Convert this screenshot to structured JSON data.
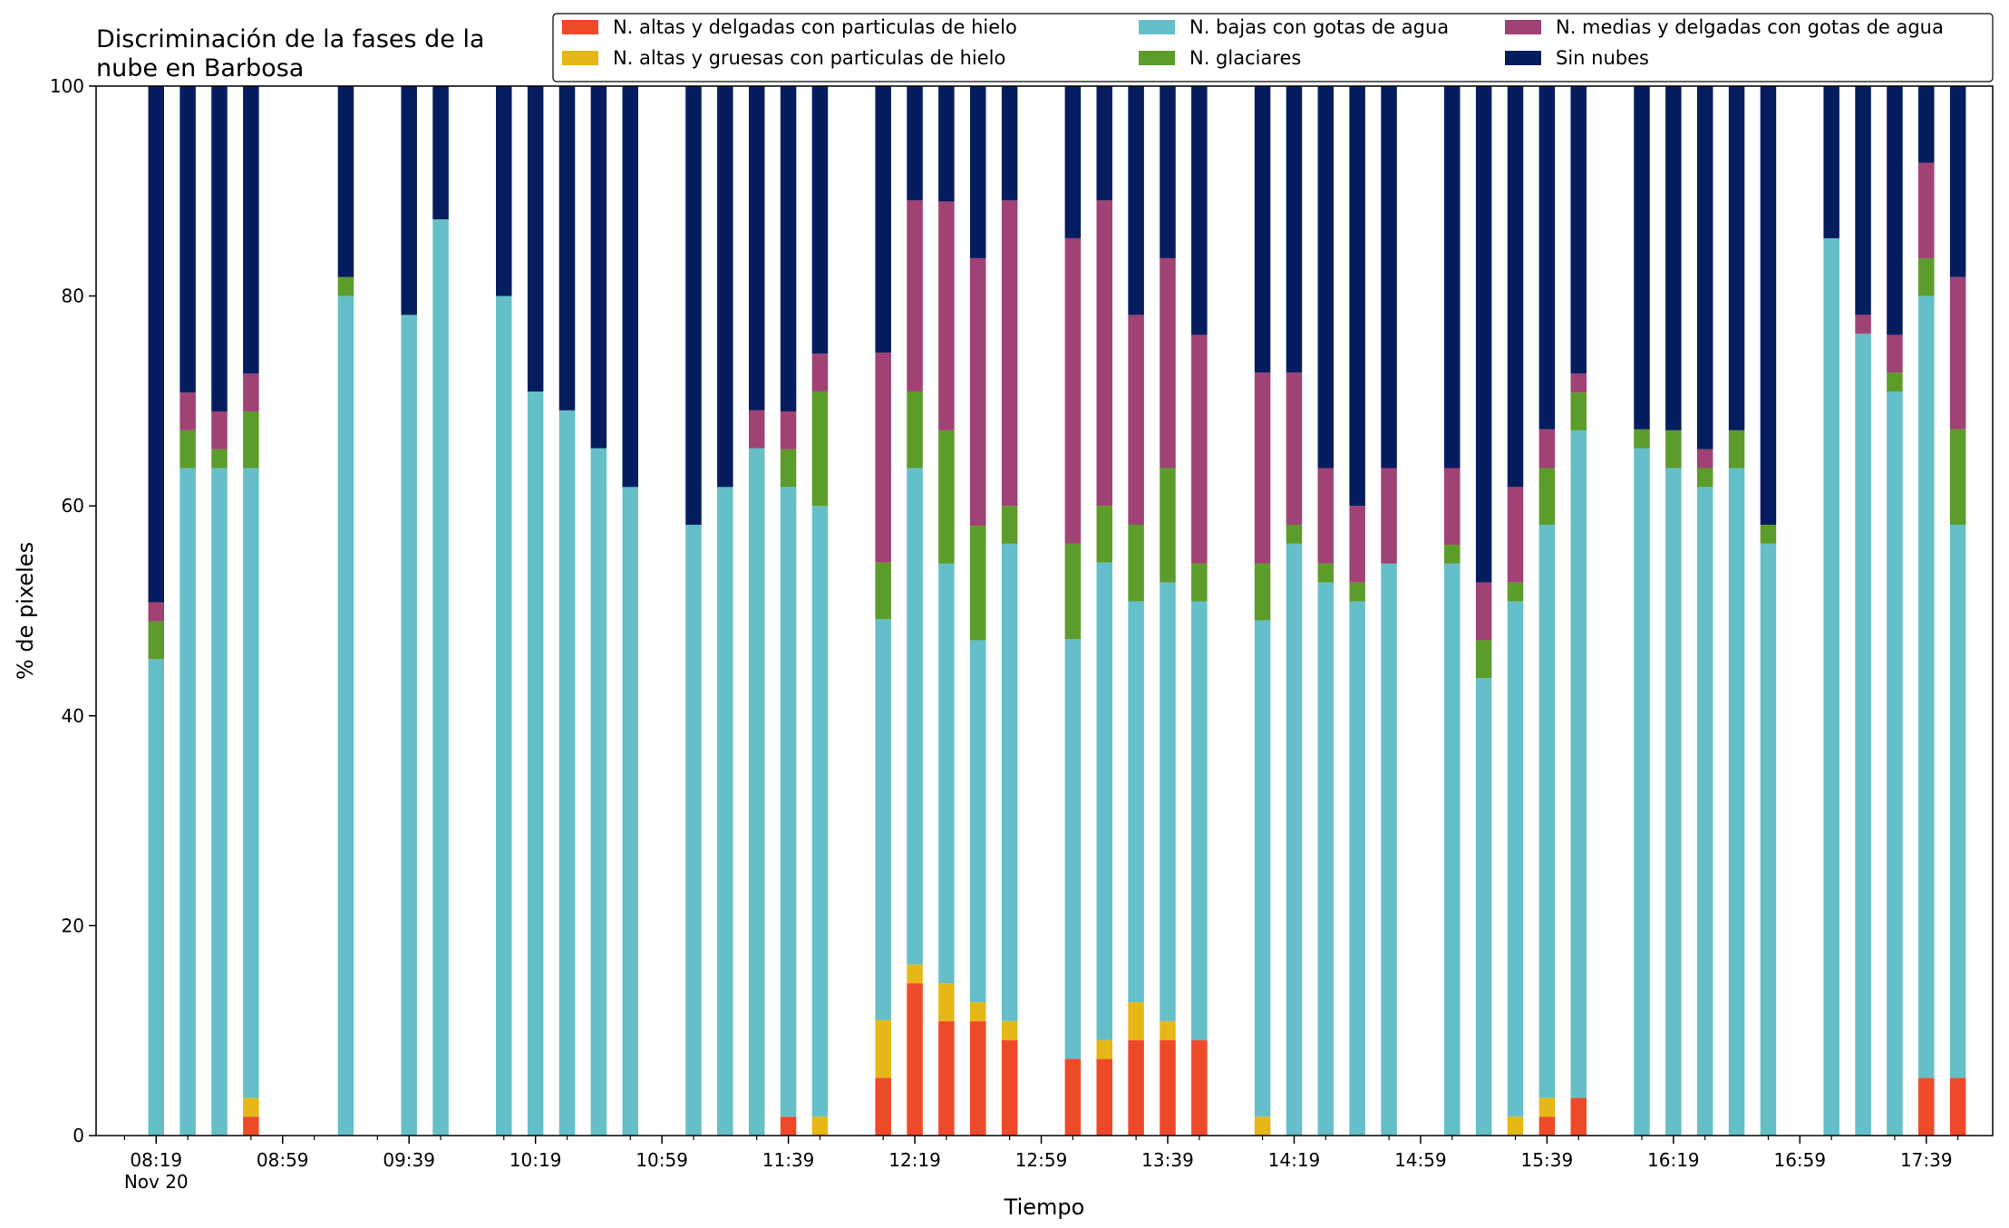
{
  "chart_data": {
    "type": "bar",
    "stacked": true,
    "title": "Discriminación de la fases de la\nnube en Barbosa",
    "xlabel": "Tiempo",
    "ylabel": "% de pixeles",
    "ylim": [
      0,
      100
    ],
    "yticks": [
      0,
      20,
      40,
      60,
      80,
      100
    ],
    "xlim_minutes": [
      8.0,
      18.0
    ],
    "legend_position": "top-right",
    "legend_columns": 3,
    "grid": false,
    "x_tick_labels": [
      {
        "t": "08:19",
        "sub": "Nov 20"
      },
      {
        "t": "08:59"
      },
      {
        "t": "09:39"
      },
      {
        "t": "10:19"
      },
      {
        "t": "10:59"
      },
      {
        "t": "11:39"
      },
      {
        "t": "12:19"
      },
      {
        "t": "12:59"
      },
      {
        "t": "13:39"
      },
      {
        "t": "14:19"
      },
      {
        "t": "14:59"
      },
      {
        "t": "15:39"
      },
      {
        "t": "16:19"
      },
      {
        "t": "16:59"
      },
      {
        "t": "17:39"
      }
    ],
    "series": [
      {
        "name": "N. altas y delgadas con particulas de hielo",
        "color": "#ee4a2a"
      },
      {
        "name": "N. altas y gruesas con particulas de hielo",
        "color": "#e6b817"
      },
      {
        "name": "N. bajas con gotas de agua",
        "color": "#65bfc9"
      },
      {
        "name": "N. glaciares",
        "color": "#5c9c2b"
      },
      {
        "name": "N. medias y delgadas con gotas de agua",
        "color": "#a04274"
      },
      {
        "name": "Sin nubes",
        "color": "#051d5e"
      }
    ],
    "bars": [
      {
        "time": "08:19",
        "values": [
          0,
          0,
          45.4,
          3.6,
          1.8,
          49.2
        ]
      },
      {
        "time": "08:29",
        "values": [
          0,
          0,
          63.6,
          3.6,
          3.6,
          29.2
        ]
      },
      {
        "time": "08:39",
        "values": [
          0,
          0,
          63.6,
          1.8,
          3.6,
          31.0
        ]
      },
      {
        "time": "08:49",
        "values": [
          1.8,
          1.8,
          60.0,
          5.4,
          3.6,
          27.4
        ]
      },
      {
        "time": "09:19",
        "values": [
          0,
          0,
          80.0,
          1.8,
          0,
          18.2
        ]
      },
      {
        "time": "09:39",
        "values": [
          0,
          0,
          78.2,
          0,
          0,
          21.8
        ]
      },
      {
        "time": "09:49",
        "values": [
          0,
          0,
          87.3,
          0,
          0,
          12.7
        ]
      },
      {
        "time": "10:09",
        "values": [
          0,
          0,
          80.0,
          0,
          0,
          20.0
        ]
      },
      {
        "time": "10:19",
        "values": [
          0,
          0,
          70.9,
          0,
          0,
          29.1
        ]
      },
      {
        "time": "10:29",
        "values": [
          0,
          0,
          69.1,
          0,
          0,
          30.9
        ]
      },
      {
        "time": "10:39",
        "values": [
          0,
          0,
          65.5,
          0,
          0,
          34.5
        ]
      },
      {
        "time": "10:49",
        "values": [
          0,
          0,
          61.8,
          0,
          0,
          38.2
        ]
      },
      {
        "time": "11:09",
        "values": [
          0,
          0,
          58.2,
          0,
          0,
          41.8
        ]
      },
      {
        "time": "11:19",
        "values": [
          0,
          0,
          61.8,
          0,
          0,
          38.2
        ]
      },
      {
        "time": "11:29",
        "values": [
          0,
          0,
          65.5,
          0,
          3.6,
          30.9
        ]
      },
      {
        "time": "11:39",
        "values": [
          1.8,
          0,
          60.0,
          3.6,
          3.6,
          31.0
        ]
      },
      {
        "time": "11:49",
        "values": [
          0,
          1.8,
          58.2,
          10.9,
          3.6,
          25.5
        ]
      },
      {
        "time": "12:09",
        "values": [
          5.5,
          5.5,
          38.2,
          5.4,
          20.0,
          25.4
        ]
      },
      {
        "time": "12:19",
        "values": [
          14.5,
          1.8,
          47.3,
          7.3,
          18.2,
          10.9
        ]
      },
      {
        "time": "12:29",
        "values": [
          10.9,
          3.6,
          40.0,
          12.7,
          21.8,
          11.0
        ]
      },
      {
        "time": "12:39",
        "values": [
          10.9,
          1.8,
          34.5,
          10.9,
          25.5,
          16.4
        ]
      },
      {
        "time": "12:49",
        "values": [
          9.1,
          1.8,
          45.5,
          3.6,
          29.1,
          10.9
        ]
      },
      {
        "time": "13:09",
        "values": [
          7.3,
          0,
          40.0,
          9.1,
          29.1,
          14.5
        ]
      },
      {
        "time": "13:19",
        "values": [
          7.3,
          1.8,
          45.5,
          5.4,
          29.1,
          10.9
        ]
      },
      {
        "time": "13:29",
        "values": [
          9.1,
          3.6,
          38.2,
          7.3,
          20.0,
          21.8
        ]
      },
      {
        "time": "13:39",
        "values": [
          9.1,
          1.8,
          41.8,
          10.9,
          20.0,
          16.4
        ]
      },
      {
        "time": "13:49",
        "values": [
          9.1,
          0,
          41.8,
          3.6,
          21.8,
          23.7
        ]
      },
      {
        "time": "14:09",
        "values": [
          0,
          1.8,
          47.3,
          5.4,
          18.2,
          27.3
        ]
      },
      {
        "time": "14:19",
        "values": [
          0,
          0,
          56.4,
          1.8,
          14.5,
          27.3
        ]
      },
      {
        "time": "14:29",
        "values": [
          0,
          0,
          52.7,
          1.8,
          9.1,
          36.4
        ]
      },
      {
        "time": "14:39",
        "values": [
          0,
          0,
          50.9,
          1.8,
          7.3,
          40.0
        ]
      },
      {
        "time": "14:49",
        "values": [
          0,
          0,
          54.5,
          0,
          9.1,
          36.4
        ]
      },
      {
        "time": "15:09",
        "values": [
          0,
          0,
          54.5,
          1.8,
          7.3,
          36.4
        ]
      },
      {
        "time": "15:19",
        "values": [
          0,
          0,
          43.6,
          3.6,
          5.5,
          47.3
        ]
      },
      {
        "time": "15:29",
        "values": [
          0,
          1.8,
          49.1,
          1.8,
          9.1,
          38.2
        ]
      },
      {
        "time": "15:39",
        "values": [
          1.8,
          1.8,
          54.6,
          5.4,
          3.7,
          32.7
        ]
      },
      {
        "time": "15:49",
        "values": [
          3.6,
          0,
          63.6,
          3.6,
          1.8,
          27.4
        ]
      },
      {
        "time": "16:09",
        "values": [
          0,
          0,
          65.5,
          1.8,
          0,
          32.7
        ]
      },
      {
        "time": "16:19",
        "values": [
          0,
          0,
          63.6,
          3.6,
          0,
          32.8
        ]
      },
      {
        "time": "16:29",
        "values": [
          0,
          0,
          61.8,
          1.8,
          1.8,
          34.6
        ]
      },
      {
        "time": "16:39",
        "values": [
          0,
          0,
          63.6,
          3.6,
          0,
          32.8
        ]
      },
      {
        "time": "16:49",
        "values": [
          0,
          0,
          56.4,
          1.8,
          0,
          41.8
        ]
      },
      {
        "time": "17:09",
        "values": [
          0,
          0,
          85.5,
          0,
          0,
          14.5
        ]
      },
      {
        "time": "17:19",
        "values": [
          0,
          0,
          76.4,
          0,
          1.8,
          21.8
        ]
      },
      {
        "time": "17:29",
        "values": [
          0,
          0,
          70.9,
          1.8,
          3.6,
          23.7
        ]
      },
      {
        "time": "17:39",
        "values": [
          5.5,
          0,
          74.5,
          3.6,
          9.1,
          7.3
        ]
      },
      {
        "time": "17:49",
        "values": [
          5.5,
          0,
          52.7,
          9.1,
          14.5,
          18.2
        ]
      }
    ]
  }
}
